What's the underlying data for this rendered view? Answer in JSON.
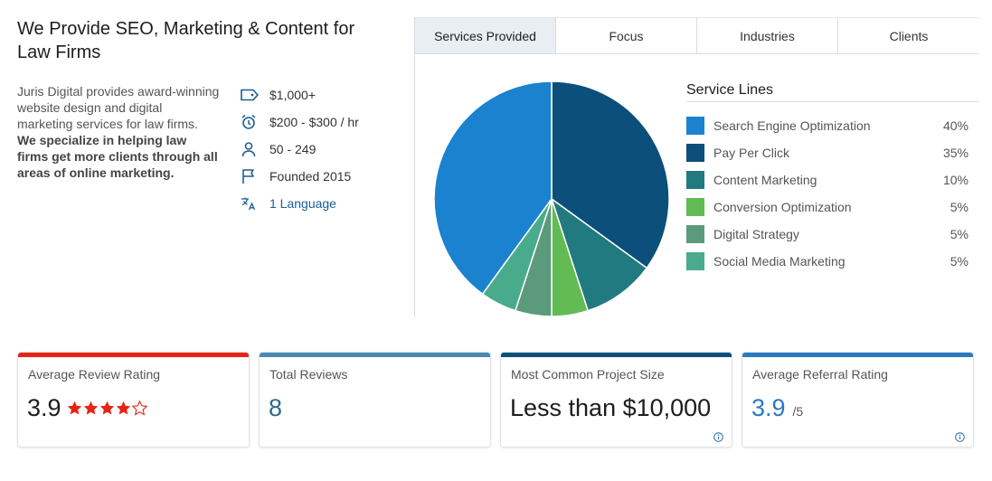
{
  "profile": {
    "title": "We Provide SEO, Marketing & Content for Law Firms",
    "description": "Juris Digital provides award-winning website design and digital marketing services for law firms.",
    "description_bold": "We specialize in helping law firms get more clients through all areas of online marketing.",
    "facts": [
      {
        "icon": "price-tag-icon",
        "text": "$1,000+"
      },
      {
        "icon": "alarm-clock-icon",
        "text": "$200 - $300 / hr"
      },
      {
        "icon": "person-icon",
        "text": "50 - 249"
      },
      {
        "icon": "flag-icon",
        "text": "Founded 2015"
      },
      {
        "icon": "translate-icon",
        "text": "1 Language"
      }
    ]
  },
  "tabs": [
    {
      "label": "Services Provided",
      "active": true
    },
    {
      "label": "Focus",
      "active": false
    },
    {
      "label": "Industries",
      "active": false
    },
    {
      "label": "Clients",
      "active": false
    }
  ],
  "chart_data": {
    "type": "pie",
    "title": "Service Lines",
    "slices": [
      {
        "label": "Search Engine Optimization",
        "value": 40,
        "display": "40%",
        "color": "#1a82cf"
      },
      {
        "label": "Pay Per Click",
        "value": 35,
        "display": "35%",
        "color": "#0b4f7a"
      },
      {
        "label": "Content Marketing",
        "value": 10,
        "display": "10%",
        "color": "#217a80"
      },
      {
        "label": "Conversion Optimization",
        "value": 5,
        "display": "5%",
        "color": "#63bb54"
      },
      {
        "label": "Digital Strategy",
        "value": 5,
        "display": "5%",
        "color": "#5c9a7c"
      },
      {
        "label": "Social Media Marketing",
        "value": 5,
        "display": "5%",
        "color": "#4aaa8c"
      }
    ],
    "start_slice": "Pay Per Click",
    "legend_position": "right"
  },
  "cards": [
    {
      "title": "Average Review Rating",
      "value": "3.9",
      "rating": 3.9,
      "max_stars": 5,
      "bar_color": "#e62415",
      "star_color": "#e62415"
    },
    {
      "title": "Total Reviews",
      "value": "8",
      "bar_color": "#4a8ab0"
    },
    {
      "title": "Most Common Project Size",
      "value": "Less than $10,000",
      "bar_color": "#0b4f7a",
      "info_icon": "info-icon"
    },
    {
      "title": "Average Referral Rating",
      "value": "3.9",
      "suffix": "/5",
      "bar_color": "#2a7ac0",
      "info_icon": "info-icon"
    }
  ]
}
